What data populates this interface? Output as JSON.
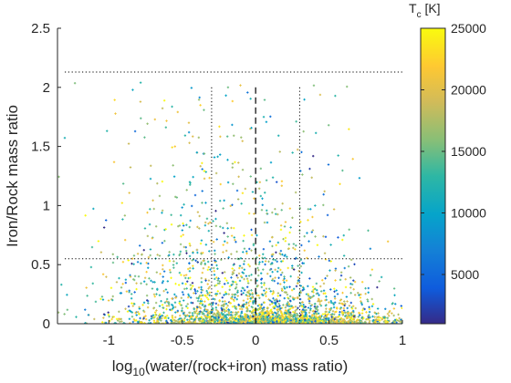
{
  "chart_data": {
    "type": "scatter",
    "xlabel": {
      "pre": "log",
      "sub": "10",
      "post": "(water/(rock+iron) mass ratio)"
    },
    "ylabel": "Iron/Rock mass ratio",
    "xlim": [
      -1.35,
      1.0
    ],
    "ylim": [
      0,
      2.5
    ],
    "xticks": [
      -1,
      -0.5,
      0,
      0.5,
      1
    ],
    "xtick_labels": [
      "-1",
      "-0.5",
      "0",
      "0.5",
      "1"
    ],
    "yticks": [
      0,
      0.5,
      1,
      1.5,
      2,
      2.5
    ],
    "ytick_labels": [
      "0",
      "0.5",
      "1",
      "1.5",
      "2",
      "2.5"
    ],
    "grid": false,
    "reference_lines": {
      "horizontal_dotted": [
        2.13,
        0.55
      ],
      "vertical_dotted": [
        -0.3,
        0.3
      ],
      "vertical_dashed": 0,
      "vertical_range_max": 2.0
    },
    "colorbar": {
      "title": {
        "main": "T",
        "sub": "c",
        "unit": " [K]"
      },
      "range": [
        1000,
        25000
      ],
      "ticks": [
        5000,
        10000,
        15000,
        20000,
        25000
      ],
      "tick_labels": [
        "5000",
        "10000",
        "15000",
        "20000",
        "25000"
      ],
      "colormap": "parula"
    },
    "point_clouds": [
      {
        "x_mean": 0.15,
        "x_std": 0.45,
        "y_scale": 0.045,
        "count": 1400,
        "temp_mean": 19000,
        "temp_std": 4500
      },
      {
        "x_mean": 0.0,
        "x_std": 0.45,
        "y_scale": 0.35,
        "count": 1100,
        "temp_mean": 14000,
        "temp_std": 6500
      },
      {
        "x_mean": -0.35,
        "x_std": 0.42,
        "y_scale": 0.75,
        "count": 450,
        "temp_mean": 17000,
        "temp_std": 6000
      }
    ],
    "colors": {
      "axis": "#262626",
      "ref_line": "#000000"
    }
  }
}
